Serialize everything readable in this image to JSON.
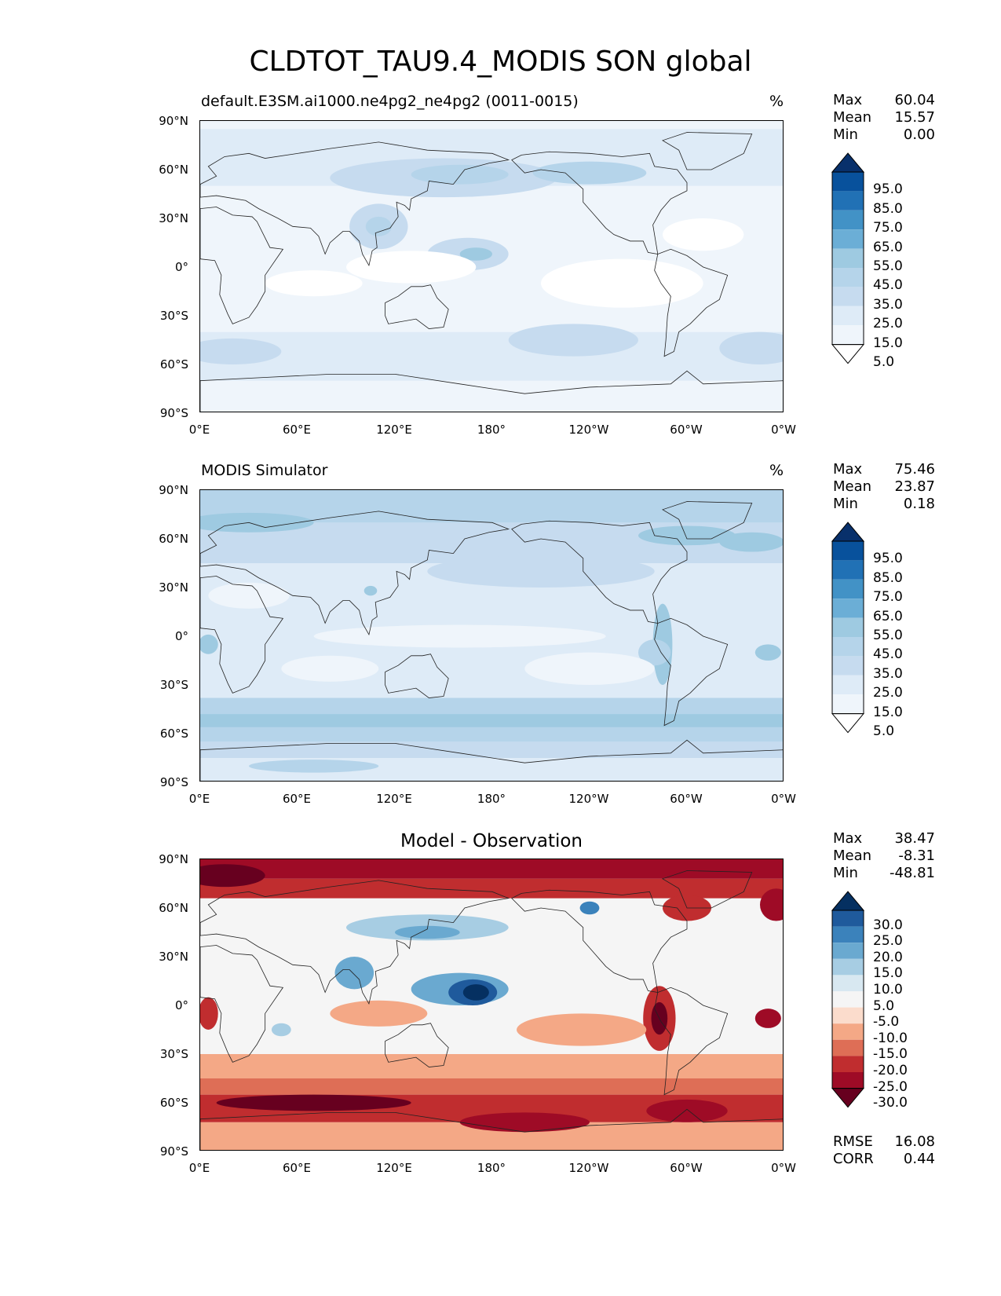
{
  "figure_title": "CLDTOT_TAU9.4_MODIS SON global",
  "lat_labels": [
    "90°N",
    "60°N",
    "30°N",
    "0°",
    "30°S",
    "60°S",
    "90°S"
  ],
  "lon_labels": [
    "0°E",
    "60°E",
    "120°E",
    "180°",
    "120°W",
    "60°W",
    "0°W"
  ],
  "panels": [
    {
      "title": "default.E3SM.ai1000.ne4pg2_ne4pg2 (0011-0015)",
      "units": "%",
      "stats": {
        "max_label": "Max",
        "max": "60.04",
        "mean_label": "Mean",
        "mean": "15.57",
        "min_label": "Min",
        "min": "0.00"
      },
      "colorbar": {
        "labels": [
          "95.0",
          "85.0",
          "75.0",
          "65.0",
          "55.0",
          "45.0",
          "35.0",
          "25.0",
          "15.0",
          "5.0"
        ],
        "colors": [
          "#08306b",
          "#08519c",
          "#2171b5",
          "#4292c6",
          "#6baed6",
          "#9ecae1",
          "#b5d4ea",
          "#c6dbef",
          "#deebf7",
          "#eff5fb",
          "#ffffff"
        ]
      }
    },
    {
      "title": "MODIS Simulator",
      "units": "%",
      "stats": {
        "max_label": "Max",
        "max": "75.46",
        "mean_label": "Mean",
        "mean": "23.87",
        "min_label": "Min",
        "min": "0.18"
      },
      "colorbar": {
        "labels": [
          "95.0",
          "85.0",
          "75.0",
          "65.0",
          "55.0",
          "45.0",
          "35.0",
          "25.0",
          "15.0",
          "5.0"
        ],
        "colors": [
          "#08306b",
          "#08519c",
          "#2171b5",
          "#4292c6",
          "#6baed6",
          "#9ecae1",
          "#b5d4ea",
          "#c6dbef",
          "#deebf7",
          "#eff5fb",
          "#ffffff"
        ]
      }
    },
    {
      "title": "Model - Observation",
      "stats": {
        "max_label": "Max",
        "max": "38.47",
        "mean_label": "Mean",
        "mean": "-8.31",
        "min_label": "Min",
        "min": "-48.81",
        "rmse_label": "RMSE",
        "rmse": "16.08",
        "corr_label": "CORR",
        "corr": "0.44"
      },
      "colorbar": {
        "labels": [
          "30.0",
          "25.0",
          "20.0",
          "15.0",
          "10.0",
          "5.0",
          "-5.0",
          "-10.0",
          "-15.0",
          "-20.0",
          "-25.0",
          "-30.0"
        ],
        "colors": [
          "#053061",
          "#1f5a9c",
          "#3b82bb",
          "#6aa9d0",
          "#a7cde3",
          "#d8e8f1",
          "#f5f5f5",
          "#fbdccc",
          "#f4a886",
          "#de6e56",
          "#c02d2f",
          "#9e0b26",
          "#67001f"
        ]
      }
    }
  ],
  "chart_data": [
    {
      "type": "heatmap",
      "title": "default.E3SM.ai1000.ne4pg2_ne4pg2 (0011-0015)",
      "units": "%",
      "x_range": [
        "0°E",
        "0°W"
      ],
      "y_range": [
        "90°S",
        "90°N"
      ],
      "max": 60.04,
      "mean": 15.57,
      "min": 0.0,
      "levels": [
        5,
        15,
        25,
        35,
        45,
        55,
        65,
        75,
        85,
        95
      ]
    },
    {
      "type": "heatmap",
      "title": "MODIS Simulator",
      "units": "%",
      "x_range": [
        "0°E",
        "0°W"
      ],
      "y_range": [
        "90°S",
        "90°N"
      ],
      "max": 75.46,
      "mean": 23.87,
      "min": 0.18,
      "levels": [
        5,
        15,
        25,
        35,
        45,
        55,
        65,
        75,
        85,
        95
      ]
    },
    {
      "type": "heatmap",
      "title": "Model - Observation",
      "x_range": [
        "0°E",
        "0°W"
      ],
      "y_range": [
        "90°S",
        "90°N"
      ],
      "max": 38.47,
      "mean": -8.31,
      "min": -48.81,
      "rmse": 16.08,
      "corr": 0.44,
      "levels": [
        -30,
        -25,
        -20,
        -15,
        -10,
        -5,
        5,
        10,
        15,
        20,
        25,
        30
      ]
    }
  ]
}
